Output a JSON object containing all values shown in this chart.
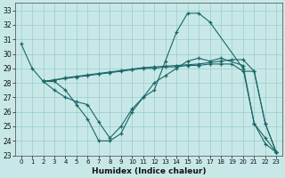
{
  "xlabel": "Humidex (Indice chaleur)",
  "xlim": [
    -0.5,
    23.5
  ],
  "ylim": [
    23,
    33.5
  ],
  "yticks": [
    23,
    24,
    25,
    26,
    27,
    28,
    29,
    30,
    31,
    32,
    33
  ],
  "xticks": [
    0,
    1,
    2,
    3,
    4,
    5,
    6,
    7,
    8,
    9,
    10,
    11,
    12,
    13,
    14,
    15,
    16,
    17,
    18,
    19,
    20,
    21,
    22,
    23
  ],
  "bg_color": "#c8e8e8",
  "grid_color": "#99cccc",
  "line_color": "#1a6666",
  "line1_x": [
    0,
    1,
    2,
    3,
    4,
    5,
    6,
    7,
    8,
    9,
    10,
    11,
    12,
    13,
    14,
    15,
    16,
    17,
    20,
    21,
    22,
    23
  ],
  "line1_y": [
    30.7,
    29.0,
    28.1,
    28.1,
    27.5,
    26.5,
    25.5,
    24.0,
    24.0,
    24.5,
    26.0,
    27.0,
    27.5,
    29.5,
    31.5,
    32.8,
    32.8,
    32.2,
    29.0,
    25.2,
    24.2,
    23.2
  ],
  "line2_x": [
    2,
    3,
    4,
    5,
    6,
    7,
    8,
    9,
    10,
    11,
    12,
    13,
    14,
    15,
    16,
    17,
    18,
    20,
    21,
    22,
    23
  ],
  "line2_y": [
    28.1,
    27.5,
    27.0,
    26.7,
    26.5,
    25.3,
    24.2,
    25.0,
    26.2,
    27.0,
    28.0,
    28.5,
    29.0,
    29.5,
    29.7,
    29.5,
    29.7,
    29.2,
    25.2,
    23.8,
    23.2
  ],
  "line3_x": [
    2,
    3,
    4,
    5,
    6,
    7,
    8,
    9,
    10,
    11,
    12,
    13,
    14,
    15,
    16,
    17,
    18,
    19,
    20,
    21,
    22,
    23
  ],
  "line3_y": [
    28.1,
    28.2,
    28.3,
    28.4,
    28.5,
    28.6,
    28.7,
    28.8,
    28.9,
    29.0,
    29.0,
    29.1,
    29.1,
    29.2,
    29.2,
    29.3,
    29.3,
    29.3,
    28.8,
    28.8,
    25.2,
    23.2
  ],
  "line4_x": [
    2,
    3,
    4,
    5,
    6,
    7,
    8,
    9,
    10,
    11,
    12,
    13,
    14,
    15,
    16,
    17,
    18,
    19,
    20,
    21,
    22,
    23
  ],
  "line4_y": [
    28.1,
    28.2,
    28.35,
    28.45,
    28.55,
    28.65,
    28.75,
    28.85,
    28.95,
    29.05,
    29.1,
    29.15,
    29.2,
    29.25,
    29.3,
    29.4,
    29.5,
    29.6,
    29.6,
    28.8,
    25.2,
    23.2
  ]
}
